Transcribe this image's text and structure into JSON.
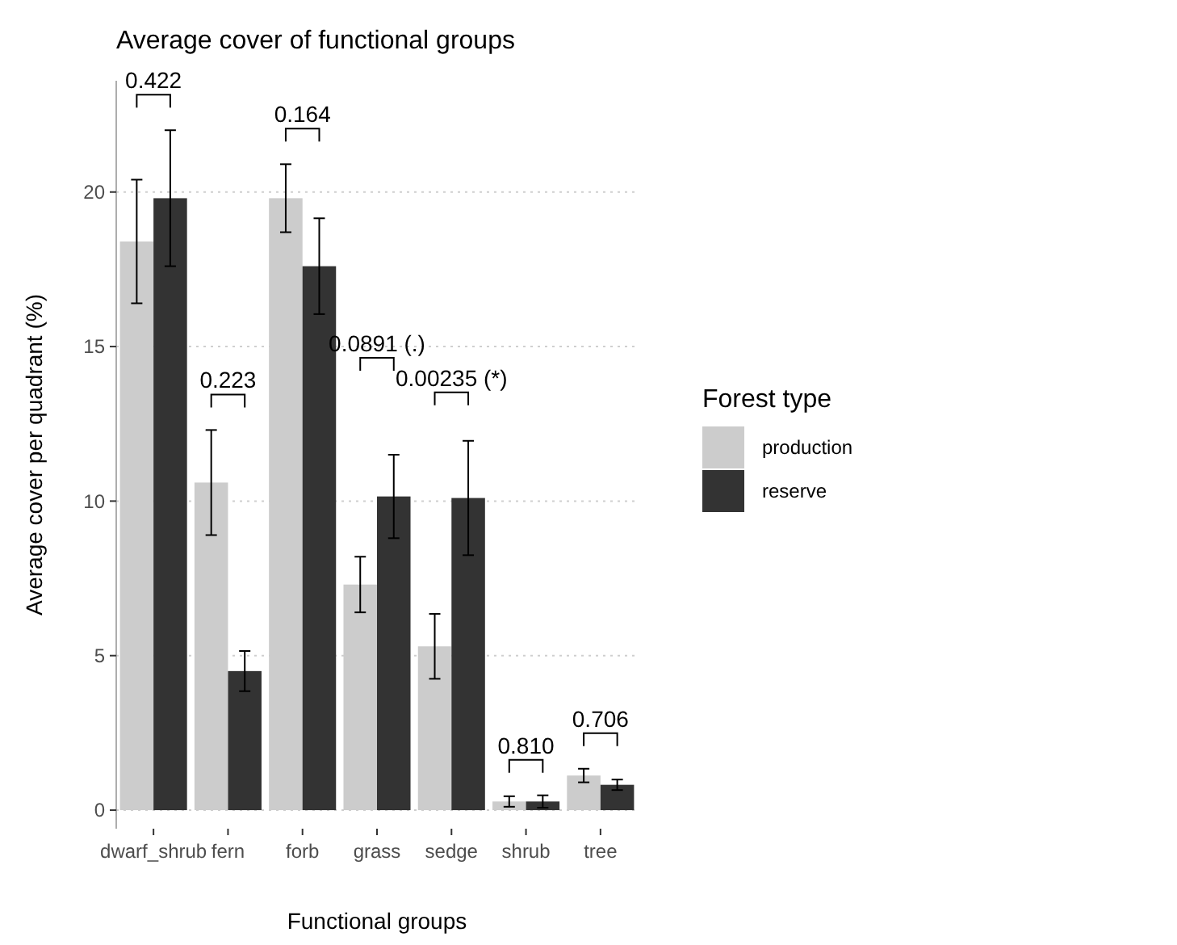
{
  "chart_data": {
    "type": "bar",
    "title": "Average cover of functional groups",
    "xlabel": "Functional groups",
    "ylabel": "Average cover per quadrant (%)",
    "legend_title": "Forest type",
    "categories": [
      "dwarf_shrub",
      "fern",
      "forb",
      "grass",
      "sedge",
      "shrub",
      "tree"
    ],
    "series": [
      {
        "name": "production",
        "color": "#cccccc",
        "values": [
          18.4,
          10.6,
          19.8,
          7.3,
          5.3,
          0.28,
          1.12
        ],
        "errors": [
          2.0,
          1.7,
          1.1,
          0.9,
          1.05,
          0.17,
          0.22
        ]
      },
      {
        "name": "reserve",
        "color": "#333333",
        "values": [
          19.8,
          4.5,
          17.6,
          10.15,
          10.1,
          0.28,
          0.82
        ],
        "errors": [
          2.2,
          0.65,
          1.55,
          1.35,
          1.85,
          0.2,
          0.17
        ]
      }
    ],
    "ylim": [
      -0.6,
      23.6
    ],
    "yticks": [
      0,
      5,
      10,
      15,
      20
    ],
    "grid": "y",
    "legend": "right",
    "annotations": [
      "0.422",
      "0.223",
      "0.164",
      "0.0891 (.)",
      "0.00235 (*)",
      "0.810",
      "0.706"
    ]
  }
}
